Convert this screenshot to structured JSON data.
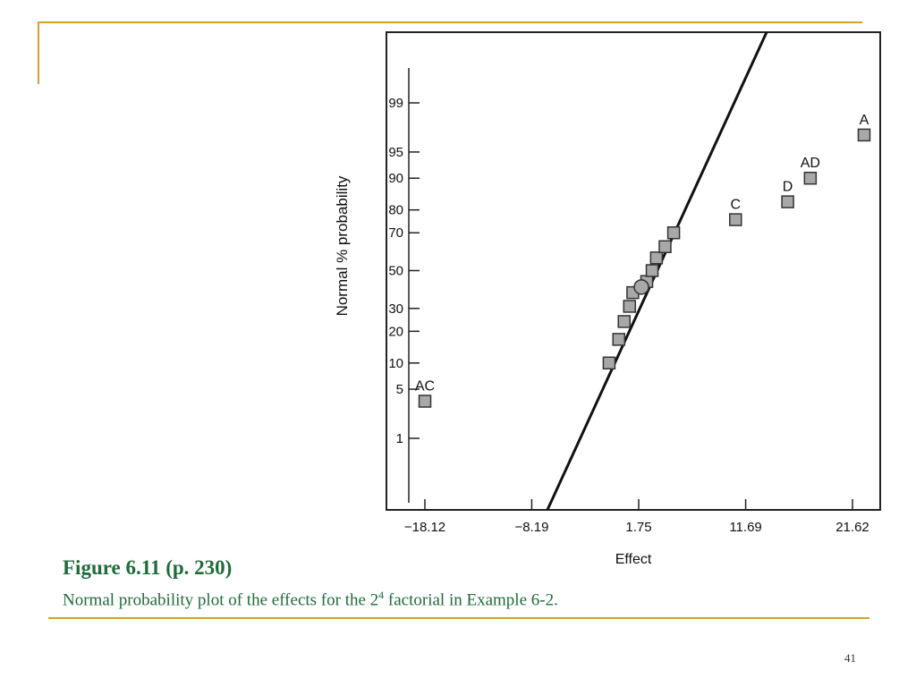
{
  "caption": {
    "figure_label": "Figure 6.11  (p. 230)",
    "text_before": "Normal probability plot of the effects for the 2",
    "superscript": "4",
    "text_after": " factorial in Example 6-2."
  },
  "page_number": "41",
  "colors": {
    "accent_line": "#d4a12a",
    "caption": "#1f6b3a",
    "marker_fill": "#a8a8a8"
  },
  "chart_data": {
    "type": "scatter",
    "xlabel": "Effect",
    "ylabel": "Normal % probability",
    "xlim": [
      -20.5,
      22.8
    ],
    "x_ticks": [
      -18.12,
      -8.19,
      1.75,
      11.69,
      21.62
    ],
    "x_tick_labels": [
      "−18.12",
      "−8.19",
      "1.75",
      "11.69",
      "21.62"
    ],
    "y_scale": "normal-probability",
    "y_ticks": [
      1,
      5,
      10,
      20,
      30,
      50,
      70,
      80,
      90,
      95,
      99
    ],
    "y_tick_labels": [
      "1",
      "5",
      "10",
      "20",
      "30",
      "50",
      "70",
      "80",
      "90",
      "95",
      "99"
    ],
    "grid": false,
    "points": [
      {
        "x": -18.12,
        "y": 3.5,
        "label": "AC"
      },
      {
        "x": -1.0,
        "y": 10,
        "label": ""
      },
      {
        "x": -0.1,
        "y": 17,
        "label": ""
      },
      {
        "x": 0.4,
        "y": 24,
        "label": ""
      },
      {
        "x": 0.9,
        "y": 31,
        "label": ""
      },
      {
        "x": 1.2,
        "y": 38,
        "label": ""
      },
      {
        "x": 2.5,
        "y": 44,
        "label": ""
      },
      {
        "x": 3.0,
        "y": 50,
        "label": ""
      },
      {
        "x": 3.4,
        "y": 57,
        "label": ""
      },
      {
        "x": 4.2,
        "y": 63,
        "label": ""
      },
      {
        "x": 5.0,
        "y": 70,
        "label": ""
      },
      {
        "x": 10.75,
        "y": 76,
        "label": "C"
      },
      {
        "x": 15.6,
        "y": 83,
        "label": "D"
      },
      {
        "x": 17.7,
        "y": 90,
        "label": "AD"
      },
      {
        "x": 22.7,
        "y": 97,
        "label": "A"
      }
    ],
    "highlighted_point": {
      "x": 2.0,
      "y": 41,
      "marker": "circle"
    },
    "reference_line": {
      "x": [
        -9.0,
        15.6
      ],
      "y": [
        0.0025,
        99.996
      ]
    }
  }
}
